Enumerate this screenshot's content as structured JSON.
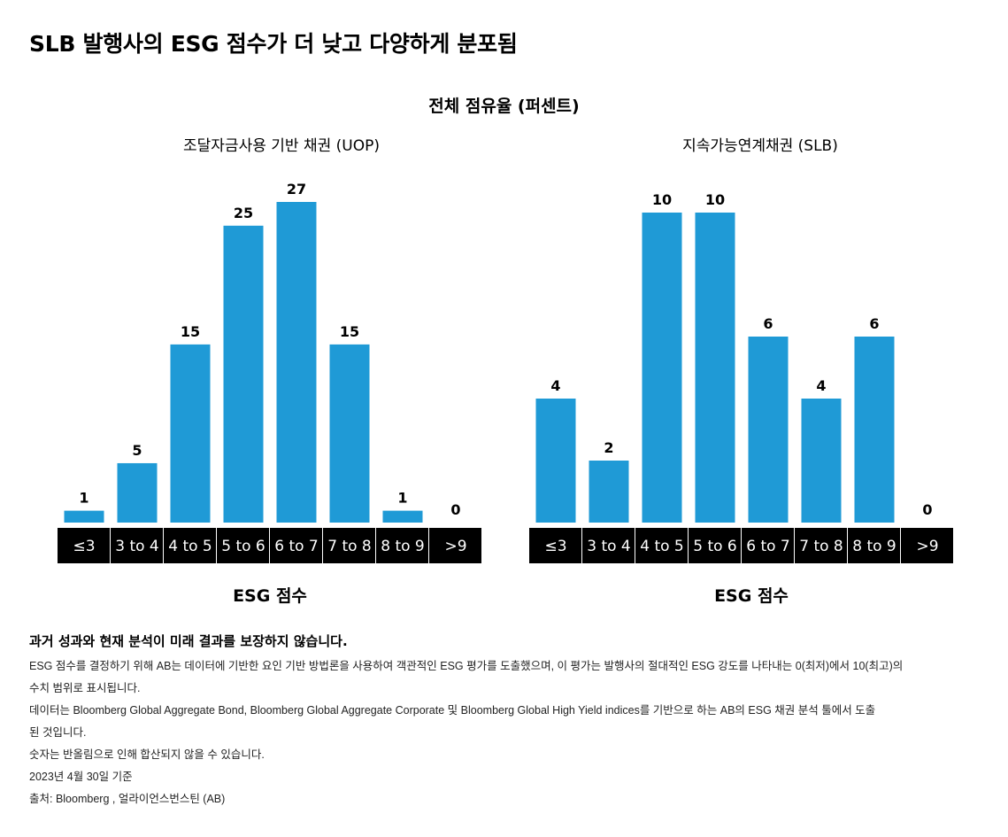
{
  "title": "SLB 발행사의 ESG 점수가 더 낮고 다양하게 분포됨",
  "subtitle": "전체 점유율 (퍼센트)",
  "chart_data": [
    {
      "type": "bar",
      "title": "조달자금사용 기반 채권 (UOP)",
      "xlabel": "ESG 점수",
      "ylabel": "",
      "categories": [
        "≤3",
        "3 to 4",
        "4 to 5",
        "5 to 6",
        "6 to 7",
        "7 to 8",
        "8 to 9",
        ">9"
      ],
      "values": [
        1,
        5,
        15,
        25,
        27,
        15,
        1,
        0
      ],
      "ylim": [
        0,
        27
      ],
      "grid": false,
      "bar_color": "#1f9ad6",
      "tick_bg_color": "#000000"
    },
    {
      "type": "bar",
      "title": "지속가능연계채권 (SLB)",
      "xlabel": "ESG 점수",
      "ylabel": "",
      "categories": [
        "≤3",
        "3 to 4",
        "4 to 5",
        "5 to 6",
        "6 to 7",
        "7 to 8",
        "8 to 9",
        ">9"
      ],
      "values": [
        4,
        2,
        10,
        10,
        6,
        4,
        6,
        0
      ],
      "ylim": [
        0,
        10
      ],
      "grid": false,
      "bar_color": "#1f9ad6",
      "tick_bg_color": "#000000"
    }
  ],
  "notes": {
    "heading": "과거 성과와 현재 분석이 미래 결과를 보장하지 않습니다.",
    "lines": [
      "ESG 점수를 결정하기 위해 AB는 데이터에 기반한 요인 기반 방법론을 사용하여 객관적인 ESG 평가를 도출했으며, 이 평가는 발행사의 절대적인 ESG 강도를 나타내는 0(최저)에서 10(최고)의",
      "수치 범위로 표시됩니다.",
      "데이터는 Bloomberg Global Aggregate Bond, Bloomberg Global Aggregate Corporate 및 Bloomberg Global High Yield indices를 기반으로 하는 AB의 ESG 채권 분석 툴에서 도출",
      "된 것입니다.",
      "숫자는 반올림으로 인해 합산되지 않을 수 있습니다.",
      "2023년 4월 30일 기준",
      "출처: Bloomberg , 얼라이언스번스틴 (AB)"
    ]
  }
}
